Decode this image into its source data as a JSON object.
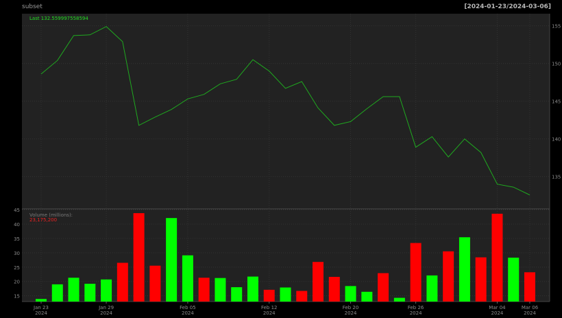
{
  "header": {
    "left_title": "subset",
    "right_title": "[2024-01-23/2024-03-06]"
  },
  "colors": {
    "background": "#000000",
    "panel": "#222222",
    "grid": "#333333",
    "axis_text": "#8c8c8c",
    "price_line": "#1faa1f",
    "up_bar": "#00ff00",
    "down_bar": "#ff0000"
  },
  "chart_data": [
    {
      "type": "line",
      "panel": "price",
      "legend_text": "Last 132.559997558594",
      "x": [
        "2024-01-23",
        "2024-01-24",
        "2024-01-25",
        "2024-01-26",
        "2024-01-29",
        "2024-01-30",
        "2024-01-31",
        "2024-02-01",
        "2024-02-02",
        "2024-02-05",
        "2024-02-06",
        "2024-02-07",
        "2024-02-08",
        "2024-02-09",
        "2024-02-12",
        "2024-02-13",
        "2024-02-14",
        "2024-02-15",
        "2024-02-16",
        "2024-02-20",
        "2024-02-21",
        "2024-02-22",
        "2024-02-23",
        "2024-02-26",
        "2024-02-27",
        "2024-02-28",
        "2024-02-29",
        "2024-03-01",
        "2024-03-04",
        "2024-03-05",
        "2024-03-06"
      ],
      "values": [
        148.6,
        150.4,
        153.7,
        153.8,
        154.9,
        152.9,
        141.8,
        142.9,
        143.9,
        145.3,
        145.9,
        147.3,
        147.9,
        150.5,
        149.0,
        146.7,
        147.6,
        144.1,
        141.8,
        142.3,
        144.0,
        145.6,
        145.6,
        138.9,
        140.3,
        137.6,
        140.0,
        138.2,
        134.0,
        133.6,
        132.56
      ],
      "ylim": [
        130.7,
        156.6
      ],
      "y_ticks": [
        135,
        140,
        145,
        150,
        155
      ],
      "grid": true
    },
    {
      "type": "bar",
      "panel": "volume",
      "legend_title": "Volume (millions):",
      "legend_value": "23,175,200",
      "x": [
        "2024-01-23",
        "2024-01-24",
        "2024-01-25",
        "2024-01-26",
        "2024-01-29",
        "2024-01-30",
        "2024-01-31",
        "2024-02-01",
        "2024-02-02",
        "2024-02-05",
        "2024-02-06",
        "2024-02-07",
        "2024-02-08",
        "2024-02-09",
        "2024-02-12",
        "2024-02-13",
        "2024-02-14",
        "2024-02-15",
        "2024-02-16",
        "2024-02-20",
        "2024-02-21",
        "2024-02-22",
        "2024-02-23",
        "2024-02-26",
        "2024-02-27",
        "2024-02-28",
        "2024-02-29",
        "2024-03-01",
        "2024-03-04",
        "2024-03-05",
        "2024-03-06"
      ],
      "values": [
        13.9,
        19.0,
        21.3,
        19.2,
        20.7,
        26.5,
        43.8,
        25.5,
        42.1,
        29.1,
        21.3,
        21.2,
        18.0,
        21.7,
        17.1,
        17.9,
        16.7,
        26.8,
        21.6,
        18.4,
        16.4,
        22.9,
        14.3,
        33.4,
        22.1,
        30.5,
        35.4,
        28.4,
        43.6,
        28.3,
        23.2
      ],
      "direction": [
        "up",
        "up",
        "up",
        "up",
        "up",
        "down",
        "down",
        "down",
        "up",
        "up",
        "down",
        "up",
        "up",
        "up",
        "down",
        "up",
        "down",
        "down",
        "down",
        "up",
        "up",
        "down",
        "up",
        "down",
        "up",
        "down",
        "up",
        "down",
        "down",
        "up",
        "down"
      ],
      "ylim": [
        13,
        45
      ],
      "y_ticks": [
        15,
        20,
        25,
        30,
        35,
        40,
        45
      ],
      "grid": true
    }
  ],
  "x_axis": {
    "ticks": [
      {
        "index": 0,
        "line1": "Jan 23",
        "line2": "2024"
      },
      {
        "index": 4,
        "line1": "Jan 29",
        "line2": "2024"
      },
      {
        "index": 9,
        "line1": "Feb 05",
        "line2": "2024"
      },
      {
        "index": 14,
        "line1": "Feb 12",
        "line2": "2024"
      },
      {
        "index": 19,
        "line1": "Feb 20",
        "line2": "2024"
      },
      {
        "index": 23,
        "line1": "Feb 26",
        "line2": "2024"
      },
      {
        "index": 28,
        "line1": "Mar 04",
        "line2": "2024"
      },
      {
        "index": 30,
        "line1": "Mar 06",
        "line2": "2024"
      }
    ]
  }
}
